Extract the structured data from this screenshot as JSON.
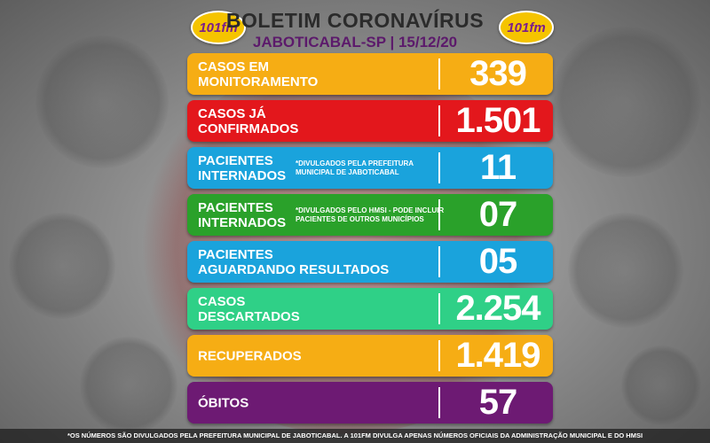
{
  "header": {
    "title": "BOLETIM CORONAVÍRUS",
    "subtitle": "JABOTICABAL-SP | 15/12/20",
    "logo_text": "101fm"
  },
  "rows": [
    {
      "label": "CASOS EM\nMONITORAMENTO",
      "note": "",
      "value": "339",
      "color": "#f6ad14"
    },
    {
      "label": "CASOS JÁ\nCONFIRMADOS",
      "note": "",
      "value": "1.501",
      "color": "#e3171c"
    },
    {
      "label": "PACIENTES\nINTERNADOS",
      "note": "*DIVULGADOS PELA PREFEITURA\nMUNICIPAL DE JABOTICABAL",
      "value": "11",
      "color": "#1aa3dc"
    },
    {
      "label": "PACIENTES\nINTERNADOS",
      "note": "*DIVULGADOS PELO HMSI - PODE INCLUIR\nPACIENTES DE OUTROS MUNICÍPIOS",
      "value": "07",
      "color": "#2aa12a"
    },
    {
      "label": "PACIENTES\nAGUARDANDO RESULTADOS",
      "note": "",
      "value": "05",
      "color": "#1aa3dc"
    },
    {
      "label": "CASOS\nDESCARTADOS",
      "note": "",
      "value": "2.254",
      "color": "#2fd087"
    },
    {
      "label": "RECUPERADOS",
      "note": "",
      "value": "1.419",
      "color": "#f6ad14"
    },
    {
      "label": "ÓBITOS",
      "note": "",
      "value": "57",
      "color": "#6d1a73"
    }
  ],
  "footer": {
    "text": "*OS NÚMEROS SÃO DIVULGADOS PELA PREFEITURA MUNICIPAL DE JABOTICABAL. A 101FM DIVULGA APENAS NÚMEROS OFICIAIS DA ADMINISTRAÇÃO MUNICIPAL E DO HMSI"
  }
}
